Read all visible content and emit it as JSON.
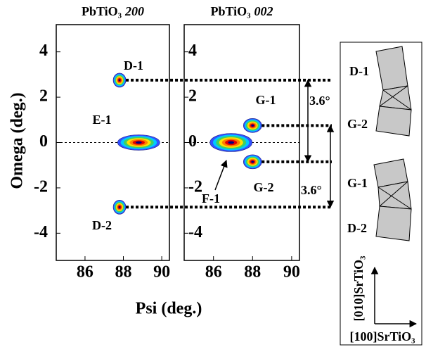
{
  "chart_data": [
    {
      "type": "contour",
      "title": "PbTiO₃",
      "reflection": "200",
      "xlim": [
        84.5,
        90.4
      ],
      "xticks": [
        86,
        88,
        90
      ],
      "ylim": [
        -5.2,
        5.2
      ],
      "yticks": [
        -4,
        -2,
        0,
        2,
        4
      ],
      "peaks": {
        "labels": [
          "D-1",
          "E-1",
          "D-2"
        ],
        "x": [
          87.8,
          88.8,
          87.8
        ],
        "y": [
          2.75,
          0,
          -2.85
        ]
      }
    },
    {
      "type": "contour",
      "title": "PbTiO₃",
      "reflection": "002",
      "xlim": [
        84.5,
        90.4
      ],
      "xticks": [
        86,
        88,
        90
      ],
      "ylim": [
        -5.2,
        5.2
      ],
      "yticks": [
        -4,
        -2,
        0,
        2,
        4
      ],
      "peaks": {
        "labels": [
          "F-1",
          "G-1",
          "G-2"
        ],
        "x": [
          86.9,
          88,
          88
        ],
        "y": [
          0,
          0.75,
          -0.85
        ]
      }
    }
  ],
  "x_label": "Psi (deg.)",
  "y_label": "Omega (deg.)",
  "separation_labels": [
    "3.6°",
    "3.6°"
  ],
  "schematic": {
    "labels": [
      "D-1",
      "G-2",
      "G-1",
      "D-2"
    ],
    "axis_labels": [
      "[010]SrTiO₃",
      "[100]SrTiO₃"
    ]
  }
}
